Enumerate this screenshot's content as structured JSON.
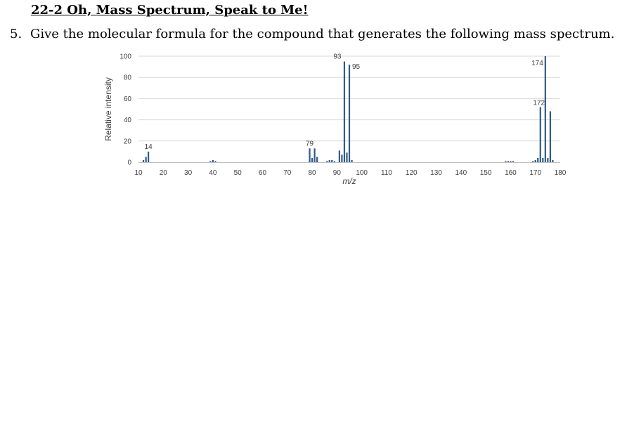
{
  "page": {
    "title": "22-2 Oh, Mass Spectrum, Speak to Me!",
    "question_number": "5.",
    "question_text": "Give the molecular formula for the compound that generates the following mass spectrum."
  },
  "chart_data": {
    "type": "bar",
    "title": "",
    "xlabel": "m/z",
    "ylabel": "Relative intensity",
    "xlim": [
      10,
      180
    ],
    "ylim": [
      0,
      100
    ],
    "xticks": [
      10,
      20,
      30,
      40,
      50,
      60,
      70,
      80,
      90,
      100,
      110,
      120,
      130,
      140,
      150,
      160,
      170,
      180
    ],
    "yticks": [
      0,
      20,
      40,
      60,
      80,
      100
    ],
    "grid": true,
    "bar_color": "#2e5b8a",
    "points": [
      {
        "x": 12,
        "y": 2
      },
      {
        "x": 13,
        "y": 5
      },
      {
        "x": 14,
        "y": 10,
        "label": "14"
      },
      {
        "x": 39,
        "y": 1
      },
      {
        "x": 40,
        "y": 2
      },
      {
        "x": 41,
        "y": 1
      },
      {
        "x": 79,
        "y": 13,
        "label": "79"
      },
      {
        "x": 80,
        "y": 4
      },
      {
        "x": 81,
        "y": 13
      },
      {
        "x": 82,
        "y": 5
      },
      {
        "x": 86,
        "y": 1
      },
      {
        "x": 87,
        "y": 2
      },
      {
        "x": 88,
        "y": 2
      },
      {
        "x": 89,
        "y": 1
      },
      {
        "x": 91,
        "y": 11
      },
      {
        "x": 92,
        "y": 7
      },
      {
        "x": 93,
        "y": 95,
        "label": "93"
      },
      {
        "x": 94,
        "y": 9
      },
      {
        "x": 95,
        "y": 92,
        "label": "95"
      },
      {
        "x": 96,
        "y": 2
      },
      {
        "x": 158,
        "y": 1
      },
      {
        "x": 159,
        "y": 1
      },
      {
        "x": 160,
        "y": 1
      },
      {
        "x": 161,
        "y": 1
      },
      {
        "x": 169,
        "y": 1
      },
      {
        "x": 170,
        "y": 2
      },
      {
        "x": 171,
        "y": 4
      },
      {
        "x": 172,
        "y": 52,
        "label": "172"
      },
      {
        "x": 173,
        "y": 4
      },
      {
        "x": 174,
        "y": 100,
        "label": "174"
      },
      {
        "x": 175,
        "y": 4
      },
      {
        "x": 176,
        "y": 48
      },
      {
        "x": 177,
        "y": 2
      }
    ]
  }
}
